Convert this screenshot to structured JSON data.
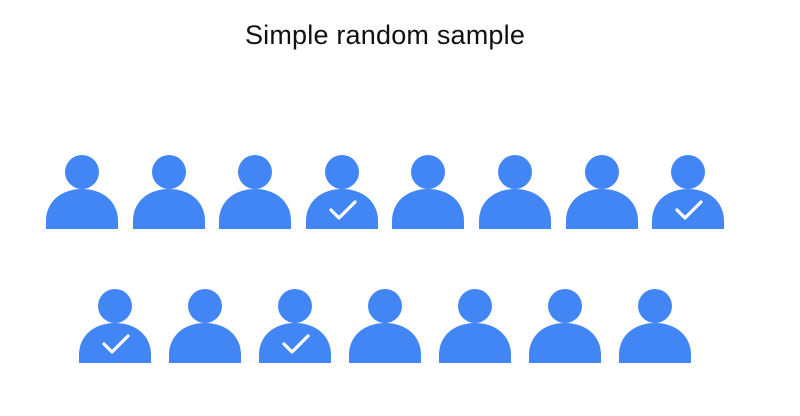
{
  "title": "Simple random sample",
  "colors": {
    "person": "#4285F4",
    "check": "#ffffff"
  },
  "rows": [
    {
      "people": [
        {
          "selected": false
        },
        {
          "selected": false
        },
        {
          "selected": false
        },
        {
          "selected": true
        },
        {
          "selected": false
        },
        {
          "selected": false
        },
        {
          "selected": false
        },
        {
          "selected": true
        }
      ]
    },
    {
      "people": [
        {
          "selected": true
        },
        {
          "selected": false
        },
        {
          "selected": true
        },
        {
          "selected": false
        },
        {
          "selected": false
        },
        {
          "selected": false
        },
        {
          "selected": false
        }
      ]
    }
  ]
}
